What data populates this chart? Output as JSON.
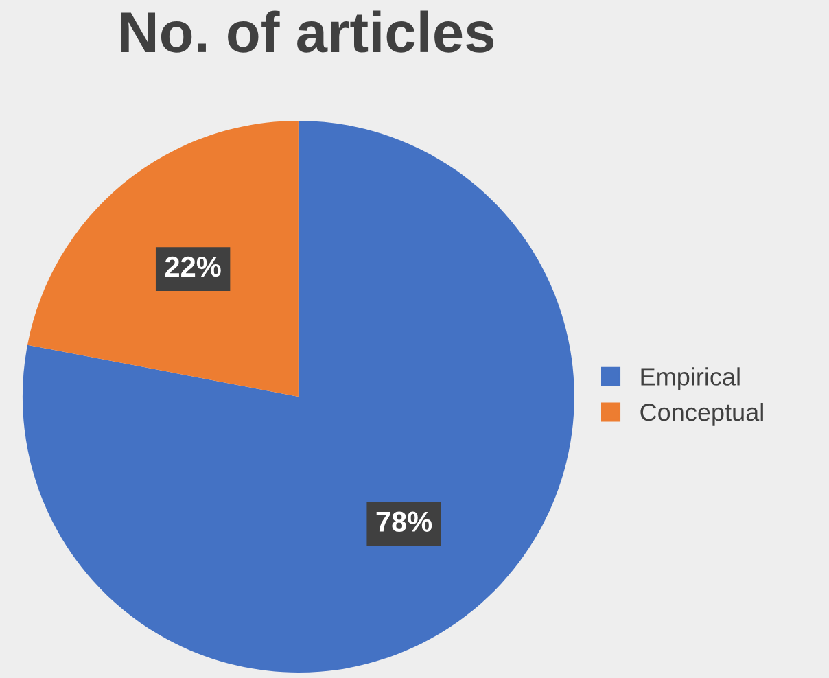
{
  "chart_data": {
    "type": "pie",
    "title": "No. of articles",
    "categories": [
      "Empirical",
      "Conceptual"
    ],
    "values": [
      78,
      22
    ],
    "colors": [
      "#4472c4",
      "#ed7d31"
    ],
    "value_labels": [
      "78%",
      "22%"
    ],
    "legend": "right"
  }
}
